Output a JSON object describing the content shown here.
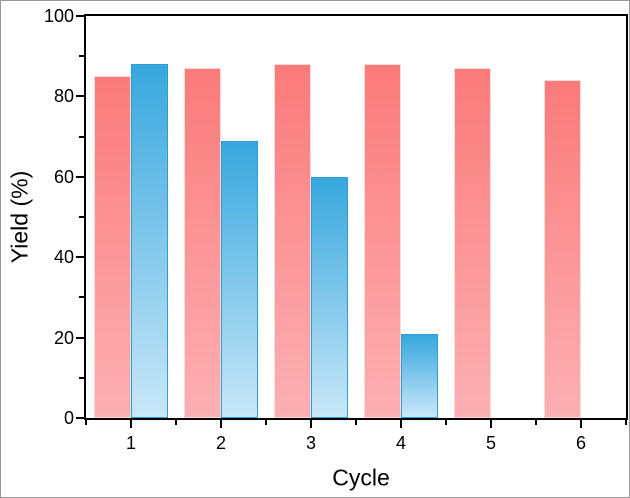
{
  "figure": {
    "background": "#ffffff",
    "frame_color": "#000000",
    "outer_border_color": "#999999"
  },
  "chart_data": {
    "type": "bar",
    "title": "",
    "xlabel": "Cycle",
    "ylabel": "Yield (%)",
    "categories": [
      "1",
      "2",
      "3",
      "4",
      "5",
      "6"
    ],
    "series": [
      {
        "name": "red",
        "values": [
          85,
          87,
          88,
          88,
          87,
          84
        ],
        "color_top": "#fb7a7a",
        "color_bottom": "#fcb0b4",
        "border_color": "#f8dbd8"
      },
      {
        "name": "blue",
        "values": [
          88,
          69,
          60,
          21,
          null,
          null
        ],
        "color_top": "#37a7dd",
        "color_bottom": "#c9e7f8",
        "border_color": "#2d9ed3"
      }
    ],
    "ylim": [
      0,
      100
    ],
    "y_major_ticks": [
      0,
      20,
      40,
      60,
      80,
      100
    ],
    "y_minor_ticks": [
      10,
      30,
      50,
      70,
      90
    ],
    "grid": false,
    "legend": "none",
    "tick_direction": "out"
  }
}
